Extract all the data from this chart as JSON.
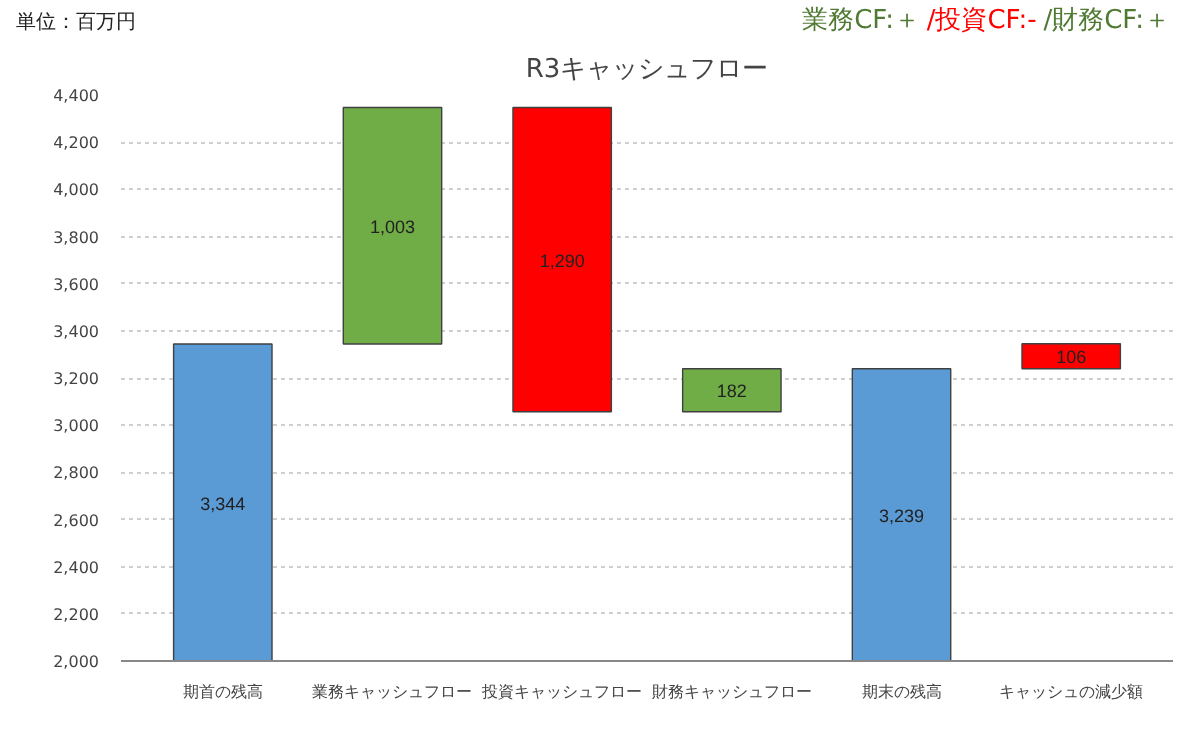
{
  "chart_data": {
    "type": "bar",
    "title": "R3キャッシュフロー",
    "categories": [
      "期首の残高",
      "業務キャッシュフロー",
      "投資キャッシュフロー",
      "財務キャッシュフロー",
      "期末の残高",
      "キャッシュの減少額"
    ],
    "values": [
      3344,
      1003,
      1290,
      182,
      3239,
      106
    ],
    "base": [
      0,
      3344,
      3057,
      3057,
      0,
      3239
    ],
    "colors": [
      "#5b9bd5",
      "#70ad47",
      "#ff0000",
      "#70ad47",
      "#5b9bd5",
      "#ff0000"
    ],
    "value_labels": [
      "3,344",
      "1,003",
      "1,290",
      "182",
      "3,239",
      "106"
    ],
    "ylim": [
      2000,
      4400
    ],
    "yticks": [
      {
        "value": 2000,
        "label": "2,000"
      },
      {
        "value": 2200,
        "label": "2,200"
      },
      {
        "value": 2400,
        "label": "2,400"
      },
      {
        "value": 2600,
        "label": "2,600"
      },
      {
        "value": 2800,
        "label": "2,800"
      },
      {
        "value": 3000,
        "label": "3,000"
      },
      {
        "value": 3200,
        "label": "3,200"
      },
      {
        "value": 3400,
        "label": "3,400"
      },
      {
        "value": 3600,
        "label": "3,600"
      },
      {
        "value": 3800,
        "label": "3,800"
      },
      {
        "value": 4000,
        "label": "4,000"
      },
      {
        "value": 4200,
        "label": "4,200"
      },
      {
        "value": 4400,
        "label": "4,400"
      }
    ],
    "grid": "y",
    "annotations": [
      "単位：百万円",
      "業務CF:＋",
      "/投資CF:-",
      "/財務CF:＋"
    ]
  }
}
